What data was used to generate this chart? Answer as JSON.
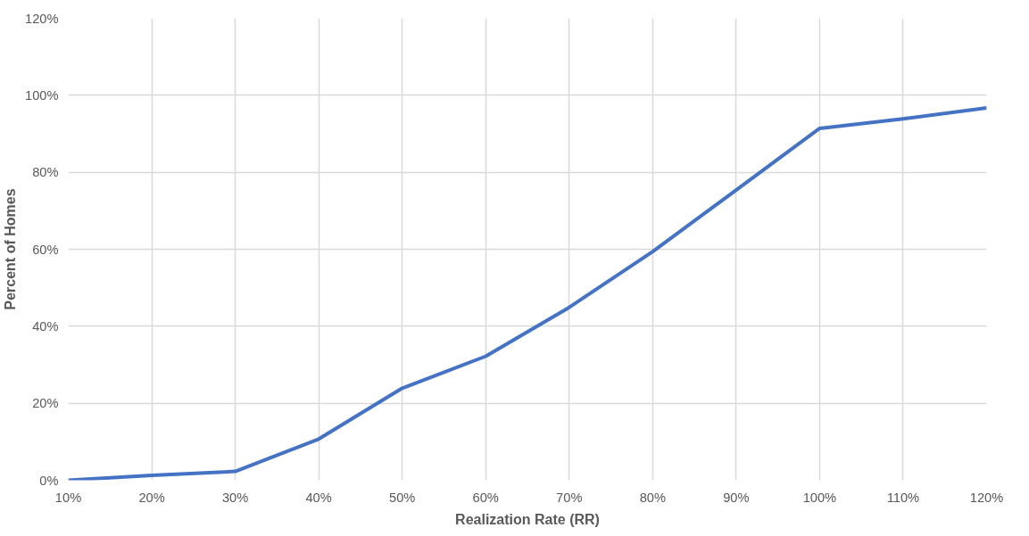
{
  "chart_data": {
    "type": "line",
    "xlabel": "Realization Rate (RR)",
    "ylabel": "Percent of Homes",
    "categories": [
      "10%",
      "20%",
      "30%",
      "40%",
      "50%",
      "60%",
      "70%",
      "80%",
      "90%",
      "100%",
      "110%",
      "120%"
    ],
    "series": [
      {
        "color": "#4472c4",
        "values": [
          0,
          1.3,
          2.3,
          10.7,
          23.9,
          32.2,
          44.9,
          59.4,
          75.4,
          91.4,
          93.9,
          96.7
        ]
      }
    ],
    "ylim": [
      0,
      120
    ],
    "yticks": [
      {
        "value": 0,
        "label": "0%"
      },
      {
        "value": 20,
        "label": "20%"
      },
      {
        "value": 40,
        "label": "40%"
      },
      {
        "value": 60,
        "label": "60%"
      },
      {
        "value": 80,
        "label": "80%"
      },
      {
        "value": 100,
        "label": "100%"
      },
      {
        "value": 120,
        "label": "120%"
      }
    ],
    "grid": true,
    "marker": "none",
    "line_style": "solid"
  }
}
